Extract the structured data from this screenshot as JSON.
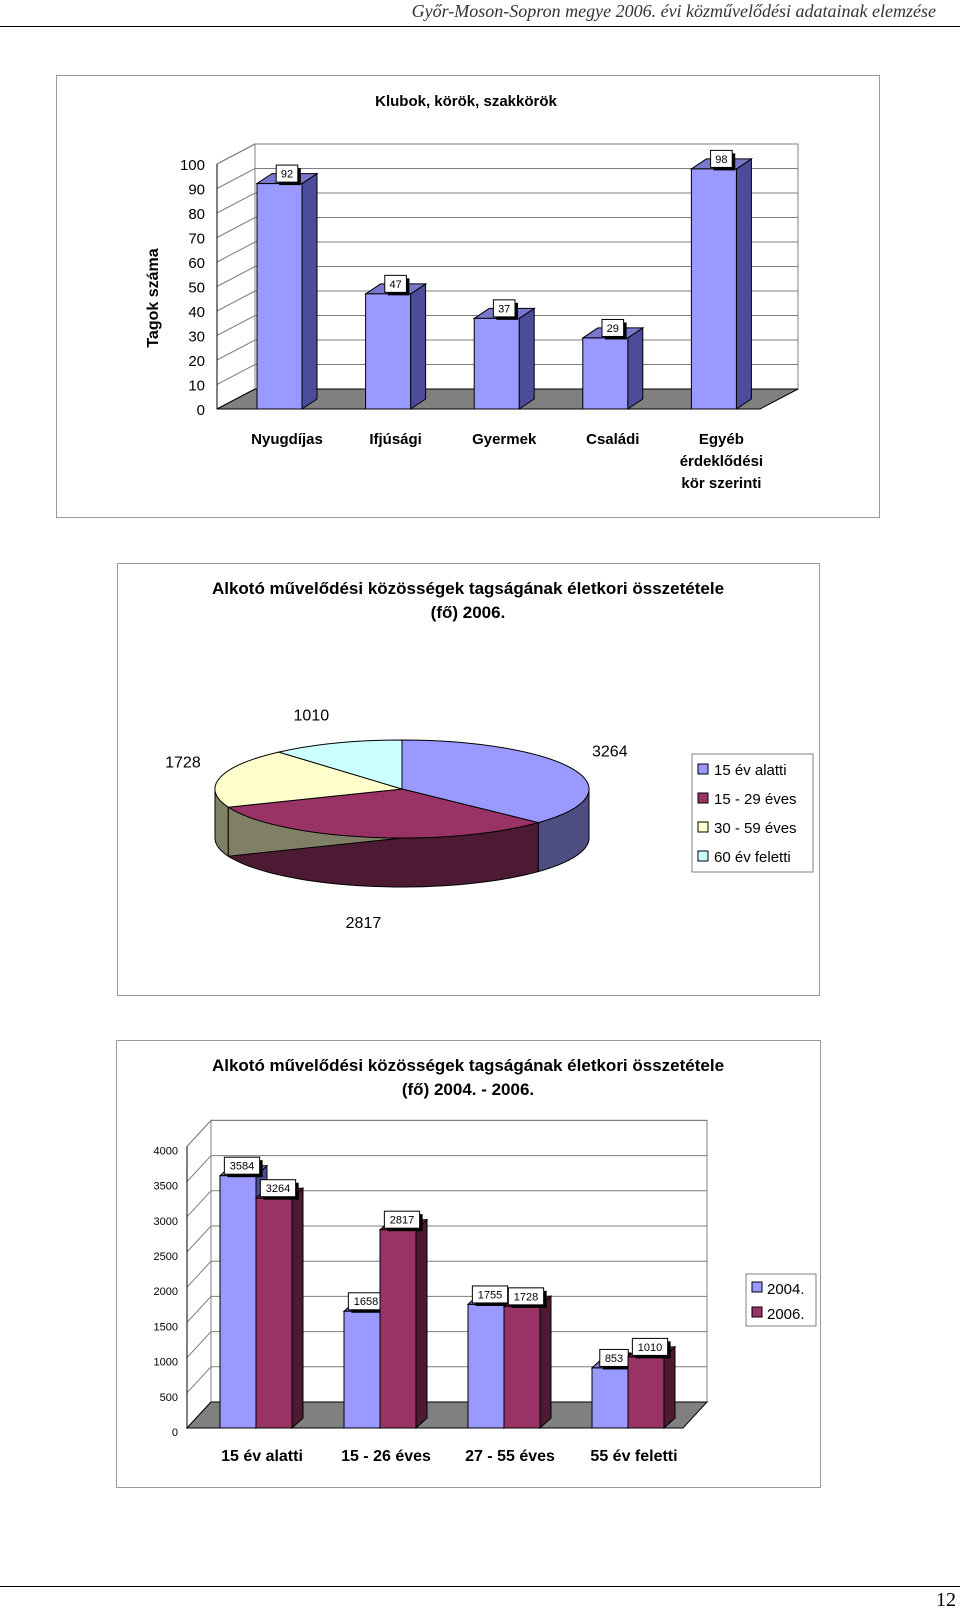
{
  "page": {
    "header": "Győr-Moson-Sopron megye 2006. évi közművelődési adatainak elemzése",
    "page_number": "12"
  },
  "chart_data": [
    {
      "type": "bar",
      "title": "Klubok, körök, szakkörök",
      "ylabel": "Tagok száma",
      "xlabel": "",
      "ylim": [
        0,
        100
      ],
      "yticks": [
        0,
        10,
        20,
        30,
        40,
        50,
        60,
        70,
        80,
        90,
        100
      ],
      "categories": [
        [
          "Nyugdíjas"
        ],
        [
          "Ifjúsági"
        ],
        [
          "Gyermek"
        ],
        [
          "Családi"
        ],
        [
          "Egyéb",
          "érdeklődési",
          "kör szerinti"
        ]
      ],
      "values": [
        92,
        47,
        37,
        29,
        98
      ],
      "grid": true,
      "colors": {
        "front": "#9999ff",
        "side": "#4c4c9a",
        "floor": "#808080"
      }
    },
    {
      "type": "pie",
      "title": "Alkotó művelődési közösségek tagságának életkori összetétele (fő) 2006.",
      "labels": [
        "15 év alatti",
        "15 - 29 éves",
        "30 - 59 éves",
        "60 év feletti"
      ],
      "values": [
        3264,
        2817,
        1728,
        1010
      ],
      "colors": [
        "#9999ff",
        "#993366",
        "#ffffcc",
        "#ccffff"
      ],
      "legend": "right"
    },
    {
      "type": "bar",
      "title": "Alkotó művelődési közösségek tagságának életkori összetétele (fő) 2004. - 2006.",
      "ylim": [
        0,
        4000
      ],
      "yticks": [
        0,
        500,
        1000,
        1500,
        2000,
        2500,
        3000,
        3500,
        4000
      ],
      "categories": [
        "15 év alatti",
        "15 - 26 éves",
        "27 - 55 éves",
        "55 év feletti"
      ],
      "series": [
        {
          "name": "2004.",
          "values": [
            3584,
            1658,
            1755,
            853
          ],
          "color": "#9999ff"
        },
        {
          "name": "2006.",
          "values": [
            3264,
            2817,
            1728,
            1010
          ],
          "color": "#993366"
        }
      ],
      "grid": true,
      "legend": "right"
    }
  ]
}
